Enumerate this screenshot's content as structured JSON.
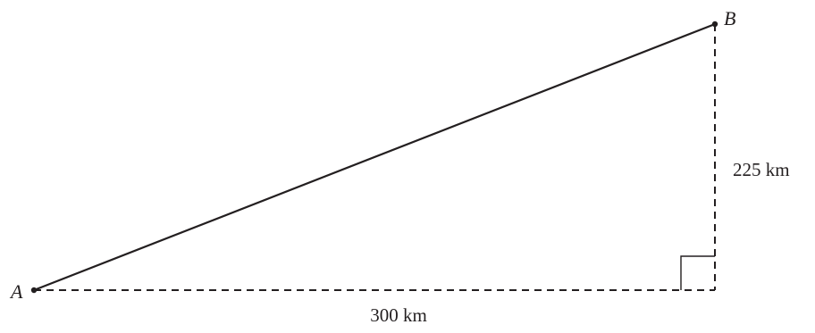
{
  "points": {
    "a": {
      "label": "A"
    },
    "b": {
      "label": "B"
    }
  },
  "distances": {
    "horizontal": "300 km",
    "vertical": "225 km"
  },
  "colors": {
    "ink": "#231f20",
    "background": "#ffffff"
  }
}
